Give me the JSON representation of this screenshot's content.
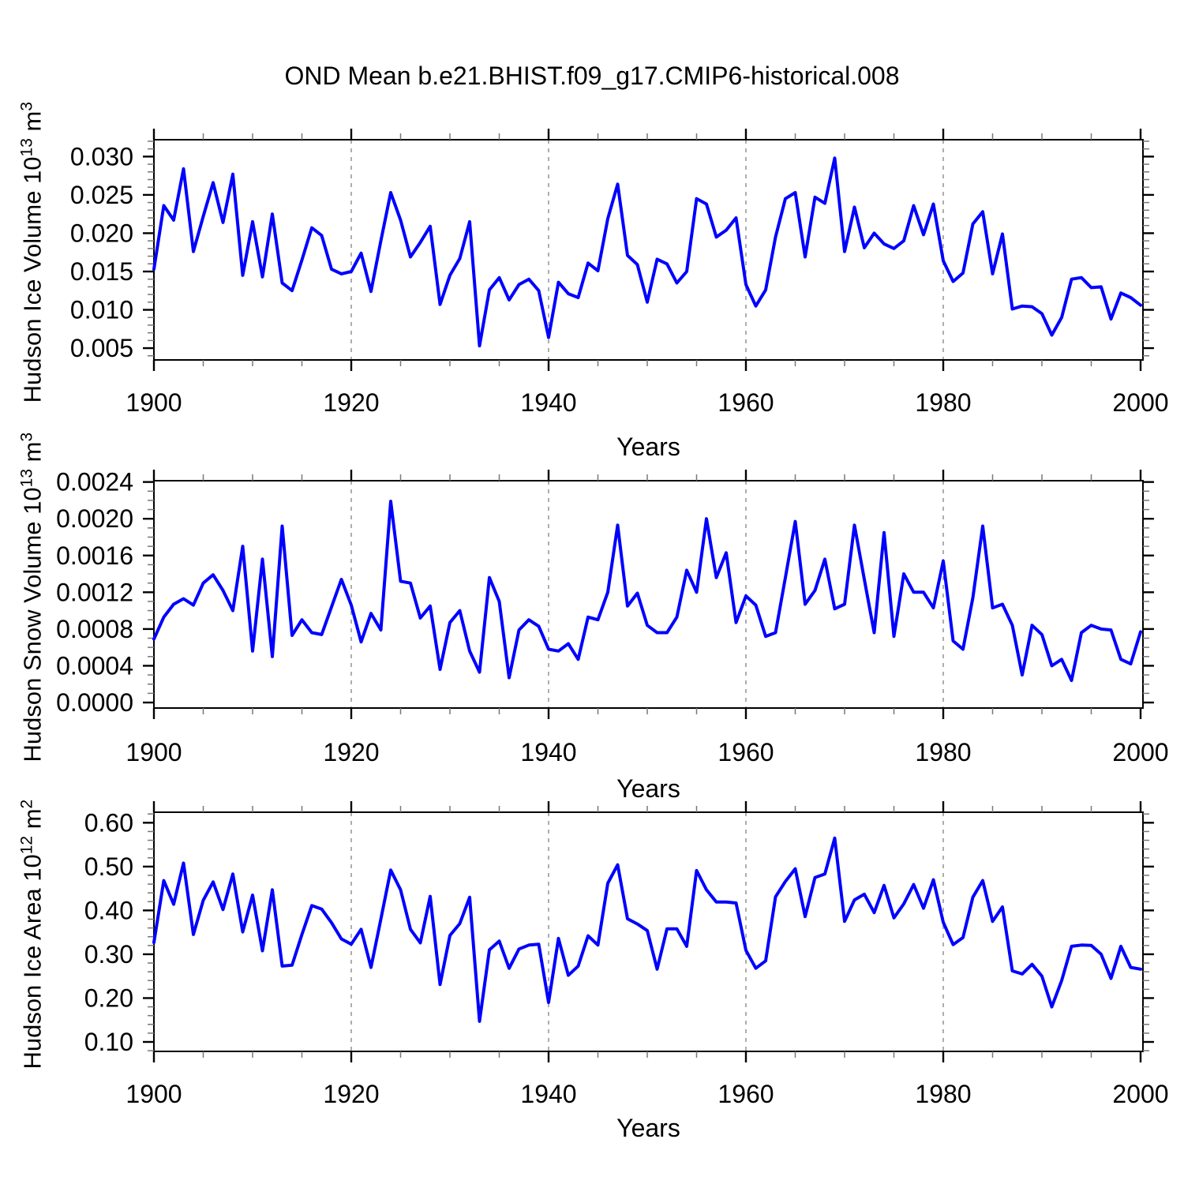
{
  "title": "OND Mean b.e21.BHIST.f09_g17.CMIP6-historical.008",
  "xlabel": "Years",
  "line_color": "#0000ff",
  "grid_color": "#999999",
  "axis_color": "#000000",
  "minor_tick_color": "#777777",
  "chart_data": [
    {
      "type": "line",
      "name": "hudson-ice-volume",
      "ylabel_base": "Hudson Ice Volume 10",
      "ylabel_exp": "13",
      "ylabel_unit": " m",
      "ylabel_unit_exp": "3",
      "xlabel": "Years",
      "x_start": 1900,
      "x_end": 2000,
      "xticks": [
        1900,
        1920,
        1940,
        1960,
        1980,
        2000
      ],
      "x_minor_step": 5,
      "x_gridlines": [
        1920,
        1940,
        1960,
        1980
      ],
      "yticks": [
        "0.005",
        "0.010",
        "0.015",
        "0.020",
        "0.025",
        "0.030"
      ],
      "y_minor_step": 0.001,
      "ylim": [
        0.00346,
        0.0322
      ],
      "grid": "x-dashed",
      "legend": "none",
      "values": [
        0.0153,
        0.0236,
        0.0217,
        0.0284,
        0.0176,
        0.0222,
        0.0266,
        0.0214,
        0.0277,
        0.0145,
        0.0215,
        0.0143,
        0.0225,
        0.0135,
        0.0125,
        0.0165,
        0.0207,
        0.0197,
        0.0153,
        0.0147,
        0.015,
        0.0174,
        0.0124,
        0.019,
        0.0253,
        0.0217,
        0.0169,
        0.0188,
        0.0209,
        0.0107,
        0.0145,
        0.0167,
        0.0215,
        0.0053,
        0.0126,
        0.0142,
        0.0113,
        0.0133,
        0.014,
        0.0125,
        0.0064,
        0.0136,
        0.0121,
        0.0116,
        0.0161,
        0.0151,
        0.0219,
        0.0264,
        0.0171,
        0.0159,
        0.011,
        0.0166,
        0.016,
        0.0135,
        0.015,
        0.0245,
        0.0238,
        0.0195,
        0.0204,
        0.022,
        0.0133,
        0.0105,
        0.0126,
        0.0195,
        0.0245,
        0.0253,
        0.0169,
        0.0247,
        0.0239,
        0.0298,
        0.0176,
        0.0234,
        0.0181,
        0.02,
        0.0186,
        0.018,
        0.019,
        0.0236,
        0.0198,
        0.0238,
        0.0164,
        0.0137,
        0.0148,
        0.0212,
        0.0228,
        0.0147,
        0.0199,
        0.0101,
        0.0105,
        0.0104,
        0.0095,
        0.0067,
        0.009,
        0.014,
        0.0142,
        0.0129,
        0.013,
        0.0088,
        0.0122,
        0.0116,
        0.0106
      ]
    },
    {
      "type": "line",
      "name": "hudson-snow-volume",
      "ylabel_base": "Hudson Snow Volume 10",
      "ylabel_exp": "13",
      "ylabel_unit": " m",
      "ylabel_unit_exp": "3",
      "xlabel": "Years",
      "x_start": 1900,
      "x_end": 2000,
      "xticks": [
        1900,
        1920,
        1940,
        1960,
        1980,
        2000
      ],
      "x_minor_step": 5,
      "x_gridlines": [
        1920,
        1940,
        1960,
        1980
      ],
      "yticks": [
        "0.0000",
        "0.0004",
        "0.0008",
        "0.0012",
        "0.0016",
        "0.0020",
        "0.0024"
      ],
      "y_minor_step": 0.0001,
      "ylim": [
        -6e-05,
        0.002414
      ],
      "grid": "x-dashed",
      "legend": "none",
      "values": [
        0.00069,
        0.00093,
        0.00107,
        0.00113,
        0.00106,
        0.0013,
        0.00139,
        0.00122,
        0.001,
        0.0017,
        0.00056,
        0.00156,
        0.0005,
        0.00192,
        0.00073,
        0.0009,
        0.00076,
        0.00074,
        0.00104,
        0.00134,
        0.00106,
        0.00066,
        0.00097,
        0.00079,
        0.00219,
        0.00132,
        0.0013,
        0.00092,
        0.00105,
        0.00036,
        0.00087,
        0.001,
        0.00056,
        0.00033,
        0.00136,
        0.0011,
        0.00027,
        0.00079,
        0.0009,
        0.00083,
        0.00058,
        0.00056,
        0.00064,
        0.00047,
        0.00093,
        0.0009,
        0.0012,
        0.00193,
        0.00105,
        0.00119,
        0.00084,
        0.00076,
        0.00076,
        0.00093,
        0.00144,
        0.0012,
        0.002,
        0.00136,
        0.00163,
        0.00087,
        0.00116,
        0.00106,
        0.00072,
        0.00076,
        0.00136,
        0.00197,
        0.00107,
        0.00122,
        0.00156,
        0.00102,
        0.00107,
        0.00193,
        0.00134,
        0.00076,
        0.00185,
        0.00072,
        0.0014,
        0.0012,
        0.0012,
        0.00103,
        0.00154,
        0.00067,
        0.00058,
        0.00114,
        0.00192,
        0.00103,
        0.00107,
        0.00084,
        0.0003,
        0.00084,
        0.00074,
        0.0004,
        0.00047,
        0.00024,
        0.00076,
        0.00084,
        0.0008,
        0.00079,
        0.00047,
        0.00042,
        0.00077
      ]
    },
    {
      "type": "line",
      "name": "hudson-ice-area",
      "ylabel_base": "Hudson Ice Area 10",
      "ylabel_exp": "12",
      "ylabel_unit": " m",
      "ylabel_unit_exp": "2",
      "xlabel": "Years",
      "x_start": 1900,
      "x_end": 2000,
      "xticks": [
        1900,
        1920,
        1940,
        1960,
        1980,
        2000
      ],
      "x_minor_step": 5,
      "x_gridlines": [
        1920,
        1940,
        1960,
        1980
      ],
      "yticks": [
        "0.10",
        "0.20",
        "0.30",
        "0.40",
        "0.50",
        "0.60"
      ],
      "y_minor_step": 0.02,
      "ylim": [
        0.0784,
        0.624
      ],
      "grid": "x-dashed",
      "legend": "none",
      "values": [
        0.327,
        0.468,
        0.414,
        0.508,
        0.345,
        0.423,
        0.465,
        0.402,
        0.483,
        0.351,
        0.435,
        0.308,
        0.447,
        0.273,
        0.275,
        0.345,
        0.411,
        0.403,
        0.372,
        0.335,
        0.323,
        0.357,
        0.27,
        0.38,
        0.492,
        0.447,
        0.357,
        0.326,
        0.432,
        0.231,
        0.343,
        0.37,
        0.43,
        0.147,
        0.31,
        0.33,
        0.268,
        0.312,
        0.321,
        0.323,
        0.19,
        0.336,
        0.252,
        0.273,
        0.342,
        0.321,
        0.462,
        0.504,
        0.381,
        0.369,
        0.354,
        0.266,
        0.358,
        0.358,
        0.318,
        0.491,
        0.447,
        0.419,
        0.419,
        0.417,
        0.309,
        0.268,
        0.285,
        0.431,
        0.466,
        0.495,
        0.386,
        0.475,
        0.483,
        0.565,
        0.375,
        0.424,
        0.437,
        0.395,
        0.457,
        0.383,
        0.415,
        0.459,
        0.405,
        0.47,
        0.373,
        0.322,
        0.338,
        0.43,
        0.468,
        0.375,
        0.408,
        0.262,
        0.255,
        0.277,
        0.25,
        0.18,
        0.24,
        0.318,
        0.321,
        0.32,
        0.3,
        0.245,
        0.318,
        0.27,
        0.266
      ]
    }
  ]
}
